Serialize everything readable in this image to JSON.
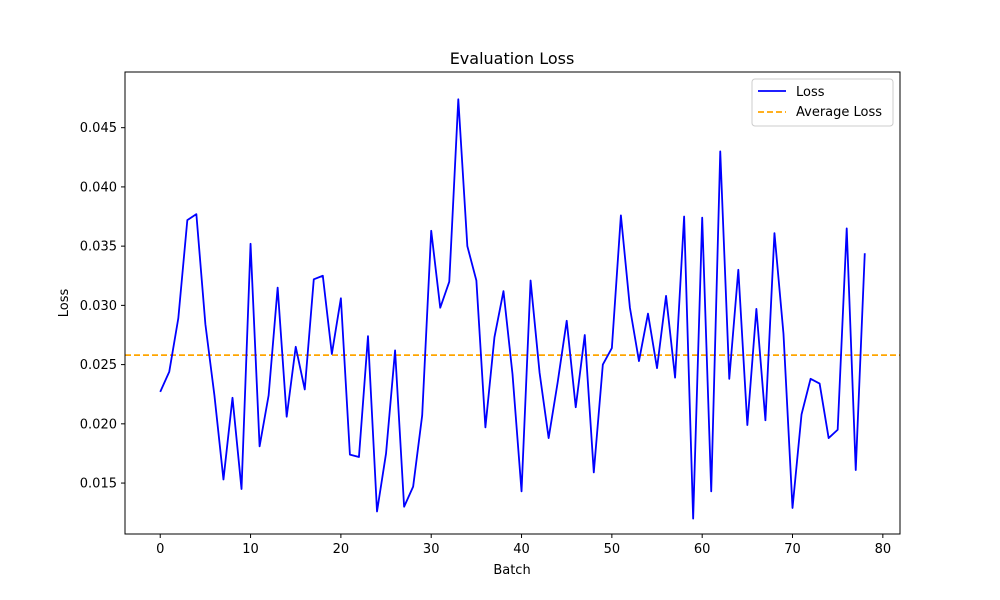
{
  "colors": {
    "loss": "#0000ff",
    "average": "#ffa500",
    "axis": "#000000",
    "background": "#ffffff"
  },
  "chart_data": {
    "type": "line",
    "title": "Evaluation Loss",
    "xlabel": "Batch",
    "ylabel": "Loss",
    "xlim": [
      -3.9,
      81.9
    ],
    "ylim": [
      0.0107,
      0.0497
    ],
    "xticks": [
      0,
      10,
      20,
      30,
      40,
      50,
      60,
      70,
      80
    ],
    "xtick_labels": [
      "0",
      "10",
      "20",
      "30",
      "40",
      "50",
      "60",
      "70",
      "80"
    ],
    "yticks": [
      0.015,
      0.02,
      0.025,
      0.03,
      0.035,
      0.04,
      0.045
    ],
    "ytick_labels": [
      "0.015",
      "0.020",
      "0.025",
      "0.030",
      "0.035",
      "0.040",
      "0.045"
    ],
    "grid": false,
    "legend": {
      "position": "top-right",
      "entries": [
        "Loss",
        "Average Loss"
      ]
    },
    "series": [
      {
        "name": "Loss",
        "style": "solid",
        "color": "#0000ff",
        "x": [
          0,
          1,
          2,
          3,
          4,
          5,
          6,
          7,
          8,
          9,
          10,
          11,
          12,
          13,
          14,
          15,
          16,
          17,
          18,
          19,
          20,
          21,
          22,
          23,
          24,
          25,
          26,
          27,
          28,
          29,
          30,
          31,
          32,
          33,
          34,
          35,
          36,
          37,
          38,
          39,
          40,
          41,
          42,
          43,
          44,
          45,
          46,
          47,
          48,
          49,
          50,
          51,
          52,
          53,
          54,
          55,
          56,
          57,
          58,
          59,
          60,
          61,
          62,
          63,
          64,
          65,
          66,
          67,
          68,
          69,
          70,
          71,
          72,
          73,
          74,
          75,
          76,
          77,
          78
        ],
        "values": [
          0.0227,
          0.0244,
          0.0289,
          0.0372,
          0.0377,
          0.0284,
          0.0224,
          0.0153,
          0.0222,
          0.0145,
          0.0352,
          0.0181,
          0.0224,
          0.0315,
          0.0206,
          0.0265,
          0.0229,
          0.0322,
          0.0325,
          0.0259,
          0.0306,
          0.0174,
          0.0172,
          0.0274,
          0.0126,
          0.0175,
          0.0262,
          0.013,
          0.0147,
          0.0207,
          0.0363,
          0.0298,
          0.032,
          0.0474,
          0.035,
          0.0321,
          0.0197,
          0.0273,
          0.0312,
          0.0242,
          0.0143,
          0.0321,
          0.0243,
          0.0188,
          0.0235,
          0.0287,
          0.0214,
          0.0275,
          0.0159,
          0.025,
          0.0264,
          0.0376,
          0.0298,
          0.0253,
          0.0293,
          0.0247,
          0.0308,
          0.0239,
          0.0375,
          0.012,
          0.0374,
          0.0143,
          0.043,
          0.0238,
          0.033,
          0.0199,
          0.0297,
          0.0203,
          0.0361,
          0.0276,
          0.0129,
          0.0208,
          0.0238,
          0.0234,
          0.0188,
          0.0195,
          0.0365,
          0.0161,
          0.0344
        ]
      },
      {
        "name": "Average Loss",
        "style": "dashed",
        "color": "#ffa500",
        "y": 0.0258
      }
    ]
  }
}
